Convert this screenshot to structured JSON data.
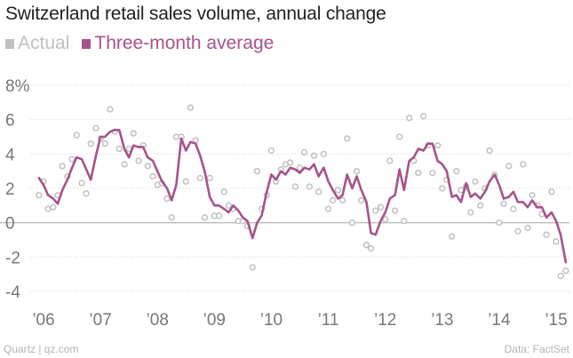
{
  "colors": {
    "actual": "#c0c0c0",
    "average": "#a6538a",
    "title": "#222222",
    "axis_text": "#777777",
    "grid": "#dedede",
    "zero_line": "#bcbcbc",
    "footer": "#b4b4b4"
  },
  "footer": {
    "source_left": "Quartz | qz.com",
    "source_right": "Data: FactSet"
  },
  "chart_data": {
    "type": "line",
    "title": "Switzerland retail sales volume, annual change",
    "xlabel": "",
    "ylabel": "",
    "legend": [
      {
        "key": "actual",
        "label": "Actual"
      },
      {
        "key": "average",
        "label": "Three-month average"
      }
    ],
    "y_ticks": [
      {
        "value": 8,
        "label": "8%"
      },
      {
        "value": 6,
        "label": "6"
      },
      {
        "value": 4,
        "label": "4"
      },
      {
        "value": 2,
        "label": "2"
      },
      {
        "value": 0,
        "label": "0"
      },
      {
        "value": -2,
        "label": "-2"
      },
      {
        "value": -4,
        "label": "-4"
      }
    ],
    "ylim": [
      -5,
      8.5
    ],
    "xlim": [
      2005.7,
      2015.2
    ],
    "x_ticks": [
      {
        "value": 2006,
        "label": "’06"
      },
      {
        "value": 2007,
        "label": "’07"
      },
      {
        "value": 2008,
        "label": "’08"
      },
      {
        "value": 2009,
        "label": "’09"
      },
      {
        "value": 2010,
        "label": "’10"
      },
      {
        "value": 2011,
        "label": "’11"
      },
      {
        "value": 2012,
        "label": "’12"
      },
      {
        "value": 2013,
        "label": "’13"
      },
      {
        "value": 2014,
        "label": "’14"
      },
      {
        "value": 2015,
        "label": "’15"
      }
    ],
    "series": [
      {
        "name": "Actual",
        "key": "actual",
        "style": "hollow-circles",
        "points": [
          [
            2005.92,
            1.6
          ],
          [
            2006.0,
            2.4
          ],
          [
            2006.08,
            0.8
          ],
          [
            2006.17,
            0.9
          ],
          [
            2006.25,
            1.6
          ],
          [
            2006.33,
            3.3
          ],
          [
            2006.42,
            2.7
          ],
          [
            2006.5,
            3.7
          ],
          [
            2006.58,
            5.1
          ],
          [
            2006.67,
            2.3
          ],
          [
            2006.75,
            1.7
          ],
          [
            2006.83,
            4.6
          ],
          [
            2006.92,
            5.5
          ],
          [
            2007.0,
            4.9
          ],
          [
            2007.08,
            4.6
          ],
          [
            2007.17,
            6.6
          ],
          [
            2007.25,
            5.3
          ],
          [
            2007.33,
            4.3
          ],
          [
            2007.42,
            3.4
          ],
          [
            2007.5,
            4.3
          ],
          [
            2007.58,
            5.2
          ],
          [
            2007.67,
            3.6
          ],
          [
            2007.75,
            4.5
          ],
          [
            2007.83,
            3.3
          ],
          [
            2007.92,
            2.7
          ],
          [
            2008.0,
            2.2
          ],
          [
            2008.08,
            2.3
          ],
          [
            2008.17,
            1.4
          ],
          [
            2008.25,
            0.3
          ],
          [
            2008.33,
            5.0
          ],
          [
            2008.42,
            5.0
          ],
          [
            2008.5,
            2.4
          ],
          [
            2008.58,
            6.7
          ],
          [
            2008.67,
            4.8
          ],
          [
            2008.75,
            2.6
          ],
          [
            2008.83,
            0.3
          ],
          [
            2008.92,
            2.6
          ],
          [
            2009.0,
            0.4
          ],
          [
            2009.08,
            0.4
          ],
          [
            2009.17,
            1.8
          ],
          [
            2009.25,
            1.0
          ],
          [
            2009.33,
            0.8
          ],
          [
            2009.42,
            0.1
          ],
          [
            2009.5,
            0.1
          ],
          [
            2009.58,
            -0.2
          ],
          [
            2009.67,
            -2.6
          ],
          [
            2009.75,
            3.0
          ],
          [
            2009.83,
            0.8
          ],
          [
            2009.92,
            1.6
          ],
          [
            2010.0,
            4.2
          ],
          [
            2010.08,
            2.4
          ],
          [
            2010.17,
            3.1
          ],
          [
            2010.25,
            3.4
          ],
          [
            2010.33,
            3.5
          ],
          [
            2010.42,
            2.1
          ],
          [
            2010.5,
            3.2
          ],
          [
            2010.58,
            4.1
          ],
          [
            2010.67,
            2.1
          ],
          [
            2010.75,
            3.9
          ],
          [
            2010.83,
            1.8
          ],
          [
            2010.92,
            4.0
          ],
          [
            2011.0,
            0.8
          ],
          [
            2011.08,
            1.3
          ],
          [
            2011.17,
            1.9
          ],
          [
            2011.25,
            1.3
          ],
          [
            2011.33,
            4.9
          ],
          [
            2011.42,
            0.0
          ],
          [
            2011.5,
            3.0
          ],
          [
            2011.58,
            1.3
          ],
          [
            2011.67,
            -1.3
          ],
          [
            2011.75,
            -1.5
          ],
          [
            2011.83,
            0.7
          ],
          [
            2011.92,
            0.9
          ],
          [
            2012.0,
            0.2
          ],
          [
            2012.08,
            3.6
          ],
          [
            2012.17,
            0.7
          ],
          [
            2012.25,
            5.0
          ],
          [
            2012.33,
            0.1
          ],
          [
            2012.42,
            6.1
          ],
          [
            2012.5,
            3.6
          ],
          [
            2012.58,
            2.9
          ],
          [
            2012.67,
            6.2
          ],
          [
            2012.75,
            4.5
          ],
          [
            2012.83,
            2.9
          ],
          [
            2012.92,
            4.5
          ],
          [
            2013.0,
            2.0
          ],
          [
            2013.08,
            2.5
          ],
          [
            2013.17,
            -0.8
          ],
          [
            2013.25,
            3.0
          ],
          [
            2013.33,
            1.9
          ],
          [
            2013.42,
            2.1
          ],
          [
            2013.5,
            0.6
          ],
          [
            2013.58,
            2.4
          ],
          [
            2013.67,
            1.0
          ],
          [
            2013.75,
            2.0
          ],
          [
            2013.83,
            4.2
          ],
          [
            2013.92,
            2.8
          ],
          [
            2014.0,
            0.0
          ],
          [
            2014.08,
            1.1
          ],
          [
            2014.17,
            3.3
          ],
          [
            2014.25,
            0.8
          ],
          [
            2014.33,
            -0.5
          ],
          [
            2014.42,
            3.4
          ],
          [
            2014.5,
            -0.3
          ],
          [
            2014.58,
            1.6
          ],
          [
            2014.67,
            1.0
          ],
          [
            2014.75,
            0.5
          ],
          [
            2014.83,
            -0.7
          ],
          [
            2014.92,
            1.8
          ],
          [
            2015.0,
            -1.1
          ],
          [
            2015.08,
            -3.1
          ],
          [
            2015.17,
            -2.8
          ]
        ]
      },
      {
        "name": "Three-month average",
        "key": "average",
        "style": "line",
        "points": [
          [
            2005.92,
            2.6
          ],
          [
            2006.0,
            2.2
          ],
          [
            2006.08,
            1.6
          ],
          [
            2006.17,
            1.4
          ],
          [
            2006.25,
            1.1
          ],
          [
            2006.33,
            1.9
          ],
          [
            2006.42,
            2.5
          ],
          [
            2006.5,
            3.2
          ],
          [
            2006.58,
            3.8
          ],
          [
            2006.67,
            3.7
          ],
          [
            2006.75,
            3.1
          ],
          [
            2006.83,
            2.5
          ],
          [
            2006.92,
            3.9
          ],
          [
            2007.0,
            5.0
          ],
          [
            2007.08,
            5.0
          ],
          [
            2007.17,
            5.3
          ],
          [
            2007.25,
            5.4
          ],
          [
            2007.33,
            5.4
          ],
          [
            2007.42,
            4.3
          ],
          [
            2007.5,
            3.8
          ],
          [
            2007.58,
            4.5
          ],
          [
            2007.67,
            4.4
          ],
          [
            2007.75,
            4.4
          ],
          [
            2007.83,
            3.8
          ],
          [
            2007.92,
            3.6
          ],
          [
            2008.0,
            3.0
          ],
          [
            2008.08,
            2.4
          ],
          [
            2008.17,
            2.0
          ],
          [
            2008.25,
            1.3
          ],
          [
            2008.33,
            2.2
          ],
          [
            2008.42,
            4.9
          ],
          [
            2008.5,
            4.2
          ],
          [
            2008.58,
            4.7
          ],
          [
            2008.67,
            4.6
          ],
          [
            2008.75,
            3.9
          ],
          [
            2008.83,
            3.0
          ],
          [
            2008.92,
            1.5
          ],
          [
            2009.0,
            1.0
          ],
          [
            2009.08,
            1.0
          ],
          [
            2009.17,
            0.8
          ],
          [
            2009.25,
            0.6
          ],
          [
            2009.33,
            1.0
          ],
          [
            2009.42,
            0.7
          ],
          [
            2009.5,
            0.3
          ],
          [
            2009.58,
            0.1
          ],
          [
            2009.67,
            -0.9
          ],
          [
            2009.75,
            0.0
          ],
          [
            2009.83,
            0.4
          ],
          [
            2009.92,
            1.8
          ],
          [
            2010.0,
            2.8
          ],
          [
            2010.08,
            2.5
          ],
          [
            2010.17,
            3.0
          ],
          [
            2010.25,
            2.8
          ],
          [
            2010.33,
            3.2
          ],
          [
            2010.42,
            3.1
          ],
          [
            2010.5,
            2.9
          ],
          [
            2010.58,
            3.2
          ],
          [
            2010.67,
            3.1
          ],
          [
            2010.75,
            3.4
          ],
          [
            2010.83,
            2.7
          ],
          [
            2010.92,
            3.2
          ],
          [
            2011.0,
            2.4
          ],
          [
            2011.08,
            1.9
          ],
          [
            2011.17,
            1.4
          ],
          [
            2011.25,
            1.6
          ],
          [
            2011.33,
            2.8
          ],
          [
            2011.42,
            2.0
          ],
          [
            2011.5,
            2.7
          ],
          [
            2011.58,
            1.9
          ],
          [
            2011.67,
            1.2
          ],
          [
            2011.75,
            -0.6
          ],
          [
            2011.83,
            -0.7
          ],
          [
            2011.92,
            0.1
          ],
          [
            2012.0,
            0.6
          ],
          [
            2012.08,
            1.4
          ],
          [
            2012.17,
            1.6
          ],
          [
            2012.25,
            3.1
          ],
          [
            2012.33,
            1.9
          ],
          [
            2012.42,
            3.6
          ],
          [
            2012.5,
            3.8
          ],
          [
            2012.58,
            4.3
          ],
          [
            2012.67,
            4.2
          ],
          [
            2012.75,
            4.6
          ],
          [
            2012.83,
            4.6
          ],
          [
            2012.92,
            3.6
          ],
          [
            2013.0,
            3.4
          ],
          [
            2013.08,
            3.0
          ],
          [
            2013.17,
            1.5
          ],
          [
            2013.25,
            1.6
          ],
          [
            2013.33,
            1.2
          ],
          [
            2013.42,
            2.3
          ],
          [
            2013.5,
            1.5
          ],
          [
            2013.58,
            1.7
          ],
          [
            2013.67,
            1.4
          ],
          [
            2013.75,
            1.8
          ],
          [
            2013.83,
            2.4
          ],
          [
            2013.92,
            2.8
          ],
          [
            2014.0,
            2.2
          ],
          [
            2014.08,
            1.4
          ],
          [
            2014.17,
            1.5
          ],
          [
            2014.25,
            1.8
          ],
          [
            2014.33,
            1.2
          ],
          [
            2014.42,
            1.2
          ],
          [
            2014.5,
            0.9
          ],
          [
            2014.58,
            1.3
          ],
          [
            2014.67,
            0.9
          ],
          [
            2014.75,
            0.9
          ],
          [
            2014.83,
            0.3
          ],
          [
            2014.92,
            0.6
          ],
          [
            2015.0,
            0.1
          ],
          [
            2015.08,
            -0.7
          ],
          [
            2015.17,
            -2.3
          ]
        ]
      }
    ]
  }
}
